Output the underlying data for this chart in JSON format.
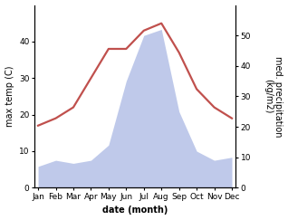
{
  "months": [
    "Jan",
    "Feb",
    "Mar",
    "Apr",
    "May",
    "Jun",
    "Jul",
    "Aug",
    "Sep",
    "Oct",
    "Nov",
    "Dec"
  ],
  "temperature": [
    17,
    19,
    22,
    30,
    38,
    38,
    43,
    45,
    37,
    27,
    22,
    19
  ],
  "precipitation": [
    7,
    9,
    8,
    9,
    14,
    35,
    50,
    52,
    25,
    12,
    9,
    10
  ],
  "temp_color": "#c0504d",
  "precip_color": "#b8c4e8",
  "ylabel_left": "max temp (C)",
  "ylabel_right": "med. precipitation\n(kg/m2)",
  "xlabel": "date (month)",
  "ylim_left": [
    0,
    50
  ],
  "ylim_right": [
    0,
    60
  ],
  "yticks_left": [
    0,
    10,
    20,
    30,
    40
  ],
  "yticks_right": [
    0,
    10,
    20,
    30,
    40,
    50
  ],
  "bg_color": "#ffffff",
  "temp_linewidth": 1.6,
  "xlabel_fontsize": 7,
  "ylabel_fontsize": 7,
  "tick_fontsize": 6.5
}
